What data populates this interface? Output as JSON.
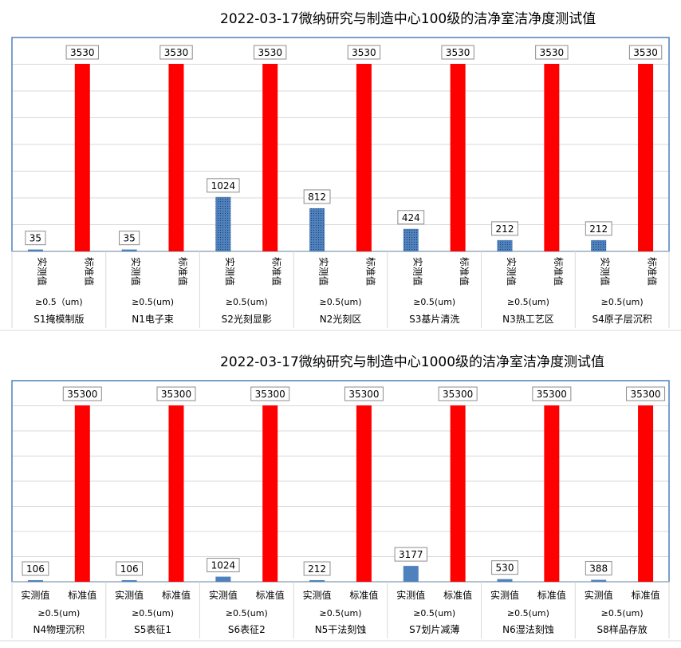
{
  "colors": {
    "measured": "#4f81bd",
    "standard": "#ff0000",
    "grid": "#d9d9d9",
    "plot_border": "#4f81bd"
  },
  "chart_data": [
    {
      "type": "bar",
      "title": "2022-03-17微纳研究与制造中心100级的洁净室洁净度测试值",
      "series_labels": [
        "实测值",
        "标准值"
      ],
      "particle_size": [
        "≥0.5（um)",
        "≥0.5(um)",
        "≥0.5(um)",
        "≥0.5(um)",
        "≥0.5(um)",
        "≥0.5(um)",
        "≥0.5(um)"
      ],
      "categories": [
        "S1掩模制版",
        "N1电子束",
        "S2光刻显影",
        "N2光刻区",
        "S3基片清洗",
        "N3热工艺区",
        "S4原子层沉积"
      ],
      "measured": [
        35,
        35,
        1024,
        812,
        424,
        212,
        212
      ],
      "standard": [
        3530,
        3530,
        3530,
        3530,
        3530,
        3530,
        3530
      ],
      "ylim": [
        0,
        3530
      ],
      "grid": true,
      "xlabel_orientation": "vertical",
      "measured_pattern": "dotted"
    },
    {
      "type": "bar",
      "title": "2022-03-17微纳研究与制造中心1000级的洁净室洁净度测试值",
      "series_labels": [
        "实测值",
        "标准值"
      ],
      "particle_size": [
        "≥0.5(um)",
        "≥0.5(um)",
        "≥0.5(um)",
        "≥0.5(um)",
        "≥0.5(um)",
        "≥0.5(um)",
        "≥0.5(um)"
      ],
      "categories": [
        "N4物理沉积",
        "S5表征1",
        "S6表征2",
        "N5干法刻蚀",
        "S7划片减薄",
        "N6湿法刻蚀",
        "S8样品存放"
      ],
      "measured": [
        106,
        106,
        1024,
        212,
        3177,
        530,
        388
      ],
      "standard": [
        35300,
        35300,
        35300,
        35300,
        35300,
        35300,
        35300
      ],
      "ylim": [
        0,
        35300
      ],
      "grid": true,
      "xlabel_orientation": "horizontal",
      "measured_pattern": "solid"
    }
  ]
}
